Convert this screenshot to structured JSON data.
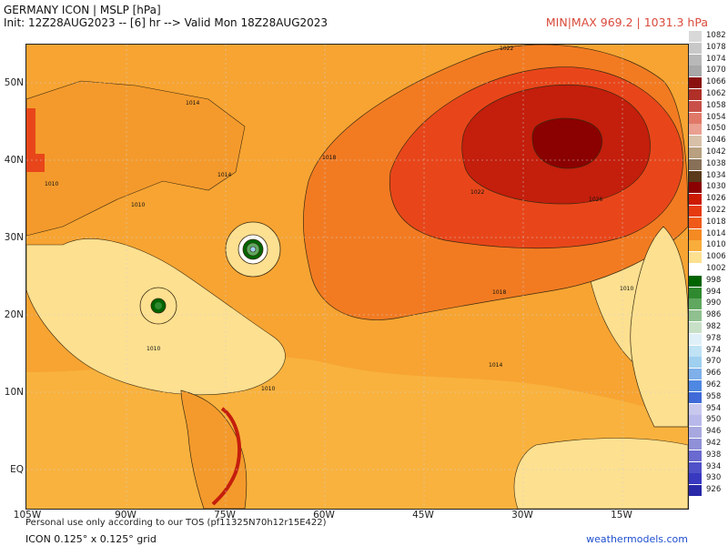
{
  "header": {
    "title": "GERMANY ICON | MSLP [hPa]",
    "init": "Init: 12Z28AUG2023 -- [6] hr --> Valid Mon 18Z28AUG2023",
    "minmax": "MIN|MAX 969.2 | 1031.3 hPa"
  },
  "axes": {
    "lat_labels": [
      "50N",
      "40N",
      "30N",
      "20N",
      "10N",
      "EQ"
    ],
    "lon_labels": [
      "105W",
      "90W",
      "75W",
      "60W",
      "45W",
      "30W",
      "15W"
    ]
  },
  "contour_labels": [
    "1022",
    "1014",
    "1018",
    "1010",
    "1010",
    "1014",
    "1022",
    "1026",
    "1018",
    "1010",
    "1010",
    "1010",
    "1014"
  ],
  "legend": {
    "levels": [
      "1082",
      "1078",
      "1074",
      "1070",
      "1066",
      "1062",
      "1058",
      "1054",
      "1050",
      "1046",
      "1042",
      "1038",
      "1034",
      "1030",
      "1026",
      "1022",
      "1018",
      "1014",
      "1010",
      "1006",
      "1002",
      "998",
      "994",
      "990",
      "986",
      "982",
      "978",
      "974",
      "970",
      "966",
      "962",
      "958",
      "954",
      "950",
      "946",
      "942",
      "938",
      "934",
      "930",
      "926"
    ],
    "colors": [
      "#d8d8d8",
      "#c8c8c8",
      "#b8b8b8",
      "#a8a8a8",
      "#8a1010",
      "#b03028",
      "#c85048",
      "#e07868",
      "#eaa090",
      "#d8c0a8",
      "#b8a080",
      "#887058",
      "#5a3a1a",
      "#8b0000",
      "#cc1a00",
      "#e63a10",
      "#f05a18",
      "#f58a22",
      "#f9ad3a",
      "#fde090",
      "#ffffff",
      "#006400",
      "#2f8a2f",
      "#60a860",
      "#90c090",
      "#c8e0c8",
      "#dff0f8",
      "#bfe2f5",
      "#9fd0f0",
      "#7fb0ea",
      "#4f88e2",
      "#3f6ad8",
      "#c8c8ee",
      "#b8b8ea",
      "#a8a8e0",
      "#9090d8",
      "#6a6ad0",
      "#5050c8",
      "#3838c0",
      "#2828a8"
    ]
  },
  "footer": {
    "tos": "Personal use only according to our TOS (pf11325N70h12r15E422)",
    "grid": "ICON 0.125° x 0.125° grid",
    "site": "weathermodels.com"
  },
  "colors": {
    "land_outline": "#3a2a10",
    "high_core": "#8b0000",
    "low_center": "#006400"
  }
}
